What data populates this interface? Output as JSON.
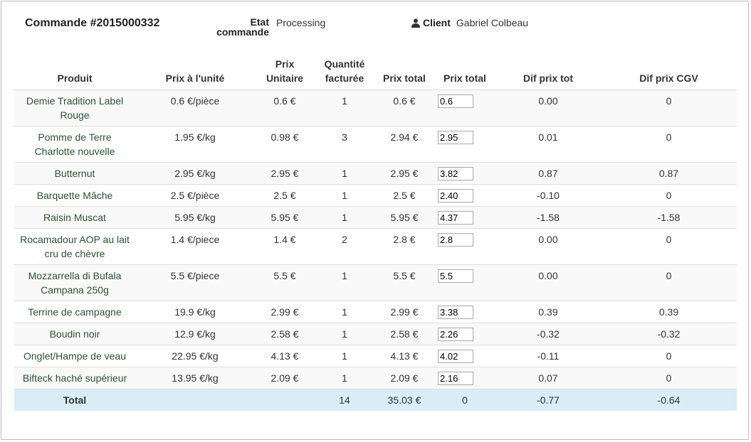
{
  "header": {
    "order_title": "Commande #2015000332",
    "state_label": "Etat commande",
    "state_value": "Processing",
    "client_label": "Client",
    "client_value": "Gabriel Colbeau",
    "client_icon": "user-icon"
  },
  "table": {
    "columns": {
      "product": "Produit",
      "unit_price": "Prix à l'unité",
      "prix_unitaire": "Prix Unitaire",
      "qty": "Quantité facturée",
      "total_price": "Prix total",
      "total_price_edit": "Prix total",
      "diff_total": "Dif prix tot",
      "diff_cgv": "Dif prix CGV"
    },
    "rows": [
      {
        "product": "Demie Tradition Label Rouge",
        "unit_price": "0.6 €/pièce",
        "prix_unitaire": "0.6 €",
        "qty": "1",
        "total_price": "0.6 €",
        "input": "0.6",
        "diff_total": "0.00",
        "diff_cgv": "0"
      },
      {
        "product": "Pomme de Terre Charlotte nouvelle",
        "unit_price": "1.95 €/kg",
        "prix_unitaire": "0.98 €",
        "qty": "3",
        "total_price": "2.94 €",
        "input": "2.95",
        "diff_total": "0.01",
        "diff_cgv": "0"
      },
      {
        "product": "Butternut",
        "unit_price": "2.95 €/kg",
        "prix_unitaire": "2.95 €",
        "qty": "1",
        "total_price": "2.95 €",
        "input": "3.82",
        "diff_total": "0.87",
        "diff_cgv": "0.87"
      },
      {
        "product": "Barquette Mâche",
        "unit_price": "2.5 €/pièce",
        "prix_unitaire": "2.5 €",
        "qty": "1",
        "total_price": "2.5 €",
        "input": "2.40",
        "diff_total": "-0.10",
        "diff_cgv": "0"
      },
      {
        "product": "Raisin Muscat",
        "unit_price": "5.95 €/kg",
        "prix_unitaire": "5.95 €",
        "qty": "1",
        "total_price": "5.95 €",
        "input": "4.37",
        "diff_total": "-1.58",
        "diff_cgv": "-1.58"
      },
      {
        "product": "Rocamadour AOP au lait cru de chèvre",
        "unit_price": "1.4 €/piece",
        "prix_unitaire": "1.4 €",
        "qty": "2",
        "total_price": "2.8 €",
        "input": "2.8",
        "diff_total": "0.00",
        "diff_cgv": "0"
      },
      {
        "product": "Mozzarrella di Bufala Campana 250g",
        "unit_price": "5.5 €/piece",
        "prix_unitaire": "5.5 €",
        "qty": "1",
        "total_price": "5.5 €",
        "input": "5.5",
        "diff_total": "0.00",
        "diff_cgv": "0"
      },
      {
        "product": "Terrine de campagne",
        "unit_price": "19.9 €/kg",
        "prix_unitaire": "2.99 €",
        "qty": "1",
        "total_price": "2.99 €",
        "input": "3.38",
        "diff_total": "0.39",
        "diff_cgv": "0.39"
      },
      {
        "product": "Boudin noir",
        "unit_price": "12.9 €/kg",
        "prix_unitaire": "2.58 €",
        "qty": "1",
        "total_price": "2.58 €",
        "input": "2.26",
        "diff_total": "-0.32",
        "diff_cgv": "-0.32"
      },
      {
        "product": "Onglet/Hampe de veau",
        "unit_price": "22.95 €/kg",
        "prix_unitaire": "4.13 €",
        "qty": "1",
        "total_price": "4.13 €",
        "input": "4.02",
        "diff_total": "-0.11",
        "diff_cgv": "0"
      },
      {
        "product": "Bifteck haché supérieur",
        "unit_price": "13.95 €/kg",
        "prix_unitaire": "2.09 €",
        "qty": "1",
        "total_price": "2.09 €",
        "input": "2.16",
        "diff_total": "0.07",
        "diff_cgv": "0"
      }
    ],
    "total": {
      "label": "Total",
      "qty": "14",
      "total_price": "35.03 €",
      "total_price_edit": "0",
      "diff_total": "-0.77",
      "diff_cgv": "-0.64"
    }
  }
}
